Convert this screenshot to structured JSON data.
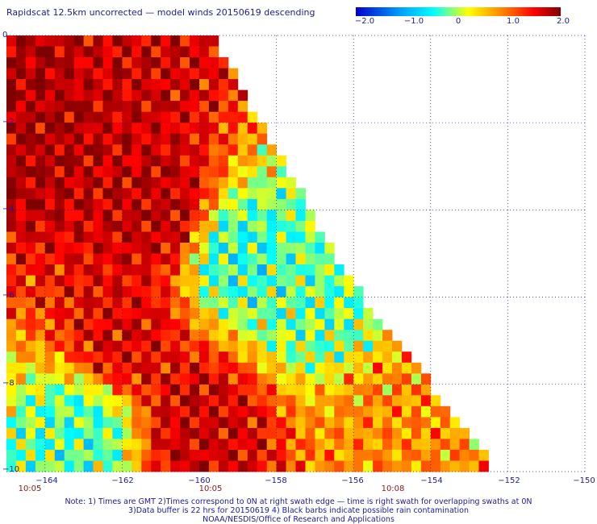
{
  "title": "Rapidscat 12.5km uncorrected — model winds 20150619 descending",
  "colorbar": {
    "ticks": [
      "−2.0",
      "−1.0",
      "0",
      "1.0",
      "2.0"
    ],
    "range": [
      -2.0,
      2.0
    ],
    "colors": [
      "#0000c8",
      "#00a0ff",
      "#00ffff",
      "#ffff00",
      "#ff8000",
      "#ff0000",
      "#800000"
    ]
  },
  "axes": {
    "x_ticks": [
      "−164",
      "−162",
      "−160",
      "−158",
      "−156",
      "−154",
      "−152",
      "−150"
    ],
    "y_ticks": [
      "0",
      "−2",
      "−4",
      "−6",
      "−8",
      "−10"
    ],
    "x_range": [
      -165,
      -150
    ],
    "y_range": [
      -10,
      0
    ],
    "grid": "dotted"
  },
  "times": [
    "10:05",
    "10:05",
    "10:08"
  ],
  "notes": [
    "Note: 1) Times are GMT 2)Times correspond to 0N at right swath edge — time is right swath for overlapping swaths at 0N",
    "3)Data buffer is 22 hrs for 20150619 4) Black barbs indicate possible rain contamination",
    "NOAA/NESDIS/Office of Research and Applications"
  ],
  "chart_data": {
    "type": "heatmap",
    "title": "Rapidscat 12.5km uncorrected — model winds 20150619 descending",
    "variable": "wind speed difference",
    "scale_range": [
      -2.0,
      2.0
    ],
    "xlim": [
      -165,
      -150
    ],
    "ylim": [
      -10,
      0
    ],
    "swath": {
      "description": "descending swath, left portion of the map",
      "right_edge": [
        [
          -159.8,
          0
        ],
        [
          -156.3,
          -5.5
        ],
        [
          -152.4,
          -10
        ]
      ]
    },
    "region_values": [
      {
        "lon": -164,
        "lat": -2,
        "value": 1.8
      },
      {
        "lon": -162,
        "lat": -1,
        "value": 1.6
      },
      {
        "lon": -161,
        "lat": -4,
        "value": 1.7
      },
      {
        "lon": -159,
        "lat": -5,
        "value": -0.6
      },
      {
        "lon": -157,
        "lat": -6,
        "value": -0.4
      },
      {
        "lon": -162,
        "lat": -7,
        "value": 1.5
      },
      {
        "lon": -163,
        "lat": -9,
        "value": -0.5
      },
      {
        "lon": -160,
        "lat": -9,
        "value": 1.6
      },
      {
        "lon": -155,
        "lat": -9,
        "value": 0.6
      }
    ]
  }
}
